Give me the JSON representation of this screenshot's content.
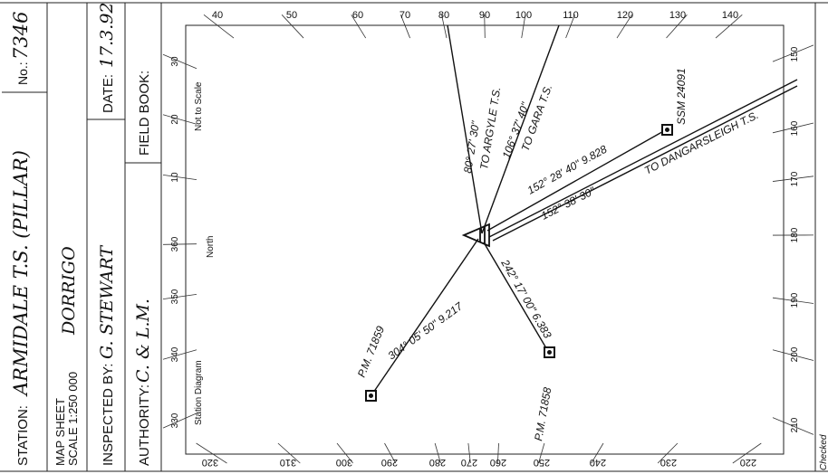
{
  "station": {
    "label": "STATION:",
    "name": "ARMIDALE T.S. (PILLAR)",
    "no_label": "No.:",
    "no_value": "7346"
  },
  "map_sheet": {
    "label_line1": "MAP SHEET",
    "label_line2": "SCALE 1:250 000",
    "value": "DORRIGO"
  },
  "inspected": {
    "label": "INSPECTED BY:",
    "value": "G. STEWART"
  },
  "date": {
    "label": "DATE:",
    "value": "17.3.92"
  },
  "authority": {
    "label": "AUTHORITY:",
    "value": "C. & L.M."
  },
  "field_book": {
    "label": "FIELD BOOK:"
  },
  "diagram": {
    "station_diagram_label": "Station Diagram",
    "north_label": "North",
    "not_to_scale_label": "Not to Scale",
    "checked_label": "Checked",
    "top_scale": [
      "40",
      "50",
      "60",
      "70",
      "80",
      "90",
      "100",
      "110",
      "120",
      "130",
      "140"
    ],
    "left_scale": [
      "30",
      "20",
      "10",
      "360",
      "350",
      "340",
      "330"
    ],
    "bottom_scale": [
      "320",
      "310",
      "300",
      "290",
      "280",
      "270",
      "260",
      "250",
      "240",
      "230",
      "220"
    ],
    "right_scale": [
      "150",
      "160",
      "170",
      "180",
      "190",
      "200",
      "210"
    ]
  },
  "observations": {
    "argyle": {
      "bearing": "80° 27' 30\"",
      "target": "TO ARGYLE T.S."
    },
    "gara": {
      "bearing": "106° 37' 40\"",
      "target": "TO GARA T.S."
    },
    "ssm": {
      "bearing": "152° 28' 40\" 9.828",
      "target": "SSM 24091"
    },
    "dangar": {
      "bearing": "152° 38' 30\"",
      "target": "TO DANGARSLEIGH T.S."
    },
    "pm7858": {
      "bearing": "242° 17' 00\" 6.383",
      "target": "P.M. 71858"
    },
    "pm7859": {
      "bearing": "304° 05' 50\" 9.217",
      "target": "P.M. 71859"
    }
  }
}
